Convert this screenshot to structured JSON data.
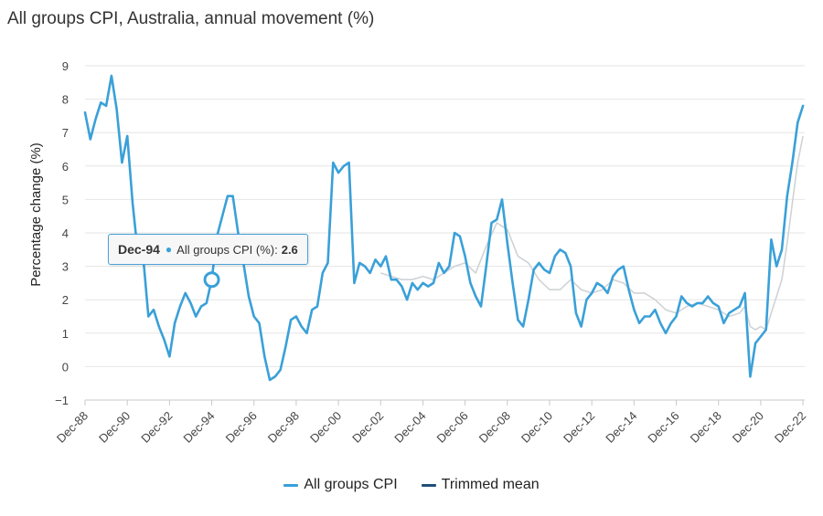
{
  "chart_data": {
    "type": "line",
    "title": "All groups CPI, Australia, annual movement (%)",
    "xlabel": "",
    "ylabel": "Percentage change (%)",
    "ylim": [
      -1,
      9
    ],
    "yticks": [
      -1,
      0,
      1,
      2,
      3,
      4,
      5,
      6,
      7,
      8,
      9
    ],
    "xlim": [
      1988.917,
      2023.0
    ],
    "xticks": [
      {
        "label": "Dec-88",
        "x": 1988.917
      },
      {
        "label": "Dec-90",
        "x": 1990.917
      },
      {
        "label": "Dec-92",
        "x": 1992.917
      },
      {
        "label": "Dec-94",
        "x": 1994.917
      },
      {
        "label": "Dec-96",
        "x": 1996.917
      },
      {
        "label": "Dec-98",
        "x": 1998.917
      },
      {
        "label": "Dec-00",
        "x": 2000.917
      },
      {
        "label": "Dec-02",
        "x": 2002.917
      },
      {
        "label": "Dec-04",
        "x": 2004.917
      },
      {
        "label": "Dec-06",
        "x": 2006.917
      },
      {
        "label": "Dec-08",
        "x": 2008.917
      },
      {
        "label": "Dec-10",
        "x": 2010.917
      },
      {
        "label": "Dec-12",
        "x": 2012.917
      },
      {
        "label": "Dec-14",
        "x": 2014.917
      },
      {
        "label": "Dec-16",
        "x": 2016.917
      },
      {
        "label": "Dec-18",
        "x": 2018.917
      },
      {
        "label": "Dec-20",
        "x": 2020.917
      },
      {
        "label": "Dec-22",
        "x": 2022.917
      }
    ],
    "series": [
      {
        "name": "All groups CPI",
        "color": "#3aa0d8",
        "points": [
          [
            1988.917,
            7.6
          ],
          [
            1989.167,
            6.8
          ],
          [
            1989.417,
            7.4
          ],
          [
            1989.667,
            7.9
          ],
          [
            1989.917,
            7.8
          ],
          [
            1990.167,
            8.7
          ],
          [
            1990.417,
            7.7
          ],
          [
            1990.667,
            6.1
          ],
          [
            1990.917,
            6.9
          ],
          [
            1991.167,
            4.9
          ],
          [
            1991.417,
            3.4
          ],
          [
            1991.667,
            3.3
          ],
          [
            1991.917,
            1.5
          ],
          [
            1992.167,
            1.7
          ],
          [
            1992.417,
            1.2
          ],
          [
            1992.667,
            0.8
          ],
          [
            1992.917,
            0.3
          ],
          [
            1993.167,
            1.3
          ],
          [
            1993.417,
            1.8
          ],
          [
            1993.667,
            2.2
          ],
          [
            1993.917,
            1.9
          ],
          [
            1994.167,
            1.5
          ],
          [
            1994.417,
            1.8
          ],
          [
            1994.667,
            1.9
          ],
          [
            1994.917,
            2.6
          ],
          [
            1995.167,
            3.9
          ],
          [
            1995.417,
            4.5
          ],
          [
            1995.667,
            5.1
          ],
          [
            1995.917,
            5.1
          ],
          [
            1996.167,
            4.0
          ],
          [
            1996.417,
            3.1
          ],
          [
            1996.667,
            2.1
          ],
          [
            1996.917,
            1.5
          ],
          [
            1997.167,
            1.3
          ],
          [
            1997.417,
            0.3
          ],
          [
            1997.667,
            -0.4
          ],
          [
            1997.917,
            -0.3
          ],
          [
            1998.167,
            -0.1
          ],
          [
            1998.417,
            0.6
          ],
          [
            1998.667,
            1.4
          ],
          [
            1998.917,
            1.5
          ],
          [
            1999.167,
            1.2
          ],
          [
            1999.417,
            1.0
          ],
          [
            1999.667,
            1.7
          ],
          [
            1999.917,
            1.8
          ],
          [
            2000.167,
            2.8
          ],
          [
            2000.417,
            3.1
          ],
          [
            2000.667,
            6.1
          ],
          [
            2000.917,
            5.8
          ],
          [
            2001.167,
            6.0
          ],
          [
            2001.417,
            6.1
          ],
          [
            2001.667,
            2.5
          ],
          [
            2001.917,
            3.1
          ],
          [
            2002.167,
            3.0
          ],
          [
            2002.417,
            2.8
          ],
          [
            2002.667,
            3.2
          ],
          [
            2002.917,
            3.0
          ],
          [
            2003.167,
            3.3
          ],
          [
            2003.417,
            2.6
          ],
          [
            2003.667,
            2.6
          ],
          [
            2003.917,
            2.4
          ],
          [
            2004.167,
            2.0
          ],
          [
            2004.417,
            2.5
          ],
          [
            2004.667,
            2.3
          ],
          [
            2004.917,
            2.5
          ],
          [
            2005.167,
            2.4
          ],
          [
            2005.417,
            2.5
          ],
          [
            2005.667,
            3.1
          ],
          [
            2005.917,
            2.8
          ],
          [
            2006.167,
            3.0
          ],
          [
            2006.417,
            4.0
          ],
          [
            2006.667,
            3.9
          ],
          [
            2006.917,
            3.3
          ],
          [
            2007.167,
            2.5
          ],
          [
            2007.417,
            2.1
          ],
          [
            2007.667,
            1.8
          ],
          [
            2007.917,
            3.0
          ],
          [
            2008.167,
            4.3
          ],
          [
            2008.417,
            4.4
          ],
          [
            2008.667,
            5.0
          ],
          [
            2008.917,
            3.7
          ],
          [
            2009.167,
            2.5
          ],
          [
            2009.417,
            1.4
          ],
          [
            2009.667,
            1.2
          ],
          [
            2009.917,
            2.0
          ],
          [
            2010.167,
            2.9
          ],
          [
            2010.417,
            3.1
          ],
          [
            2010.667,
            2.9
          ],
          [
            2010.917,
            2.8
          ],
          [
            2011.167,
            3.3
          ],
          [
            2011.417,
            3.5
          ],
          [
            2011.667,
            3.4
          ],
          [
            2011.917,
            3.0
          ],
          [
            2012.167,
            1.6
          ],
          [
            2012.417,
            1.2
          ],
          [
            2012.667,
            2.0
          ],
          [
            2012.917,
            2.2
          ],
          [
            2013.167,
            2.5
          ],
          [
            2013.417,
            2.4
          ],
          [
            2013.667,
            2.2
          ],
          [
            2013.917,
            2.7
          ],
          [
            2014.167,
            2.9
          ],
          [
            2014.417,
            3.0
          ],
          [
            2014.667,
            2.3
          ],
          [
            2014.917,
            1.7
          ],
          [
            2015.167,
            1.3
          ],
          [
            2015.417,
            1.5
          ],
          [
            2015.667,
            1.5
          ],
          [
            2015.917,
            1.7
          ],
          [
            2016.167,
            1.3
          ],
          [
            2016.417,
            1.0
          ],
          [
            2016.667,
            1.3
          ],
          [
            2016.917,
            1.5
          ],
          [
            2017.167,
            2.1
          ],
          [
            2017.417,
            1.9
          ],
          [
            2017.667,
            1.8
          ],
          [
            2017.917,
            1.9
          ],
          [
            2018.167,
            1.9
          ],
          [
            2018.417,
            2.1
          ],
          [
            2018.667,
            1.9
          ],
          [
            2018.917,
            1.8
          ],
          [
            2019.167,
            1.3
          ],
          [
            2019.417,
            1.6
          ],
          [
            2019.667,
            1.7
          ],
          [
            2019.917,
            1.8
          ],
          [
            2020.167,
            2.2
          ],
          [
            2020.417,
            -0.3
          ],
          [
            2020.667,
            0.7
          ],
          [
            2020.917,
            0.9
          ],
          [
            2021.167,
            1.1
          ],
          [
            2021.417,
            3.8
          ],
          [
            2021.667,
            3.0
          ],
          [
            2021.917,
            3.5
          ],
          [
            2022.167,
            5.1
          ],
          [
            2022.417,
            6.1
          ],
          [
            2022.667,
            7.3
          ],
          [
            2022.917,
            7.8
          ]
        ]
      },
      {
        "name": "Trimmed mean",
        "color": "#1f4e79",
        "points": [
          [
            2002.917,
            2.8
          ],
          [
            2003.417,
            2.7
          ],
          [
            2003.917,
            2.6
          ],
          [
            2004.417,
            2.6
          ],
          [
            2004.917,
            2.7
          ],
          [
            2005.417,
            2.6
          ],
          [
            2005.917,
            2.8
          ],
          [
            2006.417,
            3.0
          ],
          [
            2006.917,
            3.1
          ],
          [
            2007.417,
            2.8
          ],
          [
            2007.917,
            3.6
          ],
          [
            2008.417,
            4.3
          ],
          [
            2008.917,
            4.1
          ],
          [
            2009.417,
            3.3
          ],
          [
            2009.917,
            3.1
          ],
          [
            2010.417,
            2.6
          ],
          [
            2010.917,
            2.3
          ],
          [
            2011.417,
            2.3
          ],
          [
            2011.917,
            2.6
          ],
          [
            2012.417,
            2.3
          ],
          [
            2012.917,
            2.2
          ],
          [
            2013.417,
            2.3
          ],
          [
            2013.917,
            2.6
          ],
          [
            2014.417,
            2.5
          ],
          [
            2014.917,
            2.2
          ],
          [
            2015.417,
            2.2
          ],
          [
            2015.917,
            2.0
          ],
          [
            2016.417,
            1.7
          ],
          [
            2016.917,
            1.6
          ],
          [
            2017.417,
            1.8
          ],
          [
            2017.917,
            1.9
          ],
          [
            2018.417,
            1.8
          ],
          [
            2018.917,
            1.7
          ],
          [
            2019.417,
            1.5
          ],
          [
            2019.917,
            1.6
          ],
          [
            2020.167,
            1.8
          ],
          [
            2020.417,
            1.2
          ],
          [
            2020.667,
            1.1
          ],
          [
            2020.917,
            1.2
          ],
          [
            2021.167,
            1.1
          ],
          [
            2021.417,
            1.6
          ],
          [
            2021.667,
            2.1
          ],
          [
            2021.917,
            2.6
          ],
          [
            2022.167,
            3.7
          ],
          [
            2022.417,
            4.9
          ],
          [
            2022.667,
            6.1
          ],
          [
            2022.917,
            6.9
          ]
        ]
      }
    ],
    "legend": "bottom-center",
    "highlight": {
      "series": "All groups CPI",
      "date": "Dec-94",
      "x": 1994.917,
      "value": 2.6
    }
  },
  "tooltip": {
    "date": "Dec-94",
    "series_label": "All groups CPI (%):",
    "value": "2.6"
  },
  "legend": {
    "items": [
      {
        "label": "All groups CPI",
        "color": "#3aa0d8"
      },
      {
        "label": "Trimmed mean",
        "color": "#1f4e79"
      }
    ]
  }
}
